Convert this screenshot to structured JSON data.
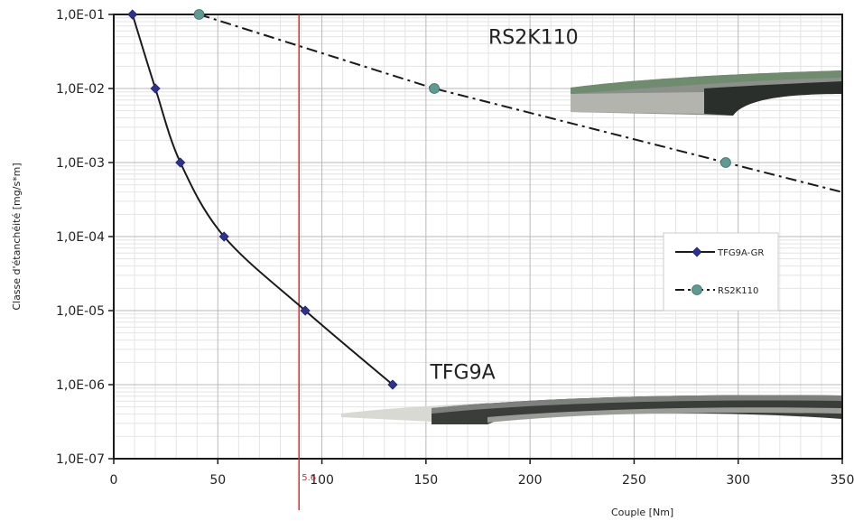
{
  "chart_data": {
    "type": "line",
    "xlabel": "Couple [Nm]",
    "ylabel": "Classe d'étanchéité [mg/s*m]",
    "xlim": [
      0,
      350
    ],
    "ylim": [
      1e-07,
      0.1
    ],
    "yscale": "log",
    "grid": true,
    "x_ticks": [
      0,
      50,
      100,
      150,
      200,
      250,
      300,
      350
    ],
    "x_tick_labels": [
      "0",
      "50",
      "100",
      "150",
      "200",
      "250",
      "300",
      "350"
    ],
    "y_ticks": [
      0.1,
      0.01,
      0.001,
      0.0001,
      1e-05,
      1e-06,
      1e-07
    ],
    "y_tick_labels": [
      "1,0E-01",
      "1,0E-02",
      "1,0E-03",
      "1,0E-04",
      "1,0E-05",
      "1,0E-06",
      "1,0E-07"
    ],
    "legend_position": "center-right",
    "series": [
      {
        "name": "TFG9A-GR",
        "color": "#2e3192",
        "marker": "diamond",
        "line_style": "solid",
        "x": [
          9,
          20,
          32,
          53,
          92,
          134
        ],
        "y": [
          0.1,
          0.01,
          0.001,
          0.0001,
          1e-05,
          1e-06
        ]
      },
      {
        "name": "RS2K110",
        "color": "#5f9a92",
        "marker": "circle",
        "line_style": "dash-dot",
        "x": [
          41,
          154,
          294
        ],
        "y": [
          0.1,
          0.01,
          0.001
        ]
      }
    ],
    "annotations": [
      {
        "text": "RS2K110",
        "x": 180,
        "y": 0.05
      },
      {
        "text": "TFG9A",
        "x": 152,
        "y": 1.5e-06
      }
    ],
    "vertical_line": {
      "x": 89,
      "label": "5.6",
      "color": "#e8282b"
    }
  }
}
